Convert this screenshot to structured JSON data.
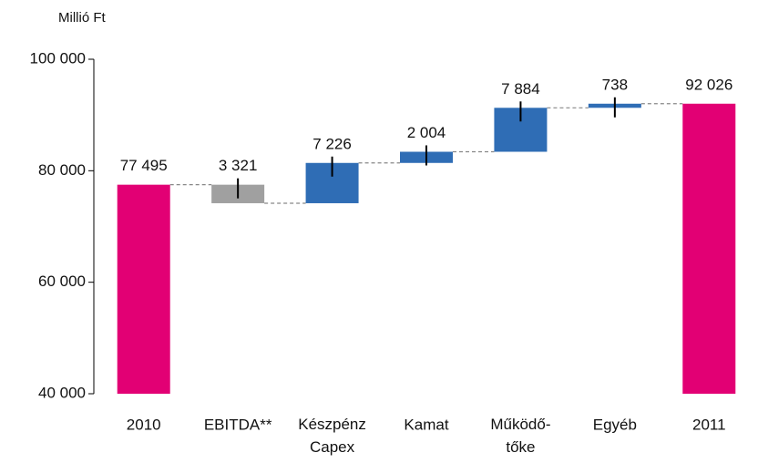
{
  "chart_data": {
    "type": "waterfall",
    "y_label": "Millió Ft",
    "categories": [
      "2010",
      "EBITDA**",
      "Készpénz\nCapex",
      "Kamat",
      "Működő-\ntőke",
      "Egyéb",
      "2011"
    ],
    "measure": [
      "absolute",
      "relative",
      "relative",
      "relative",
      "relative",
      "relative",
      "absolute"
    ],
    "values": [
      77495,
      -3321,
      7226,
      2004,
      7884,
      738,
      92026
    ],
    "value_labels": [
      "77 495",
      "3 321",
      "7 226",
      "2 004",
      "7 884",
      "738",
      "92 026"
    ],
    "colors": [
      "#e20074",
      "#a0a0a0",
      "#2f6db5",
      "#2f6db5",
      "#2f6db5",
      "#2f6db5",
      "#e20074"
    ],
    "ylim": [
      40000,
      100000
    ],
    "yticks": [
      {
        "value": 40000,
        "label": "40 000"
      },
      {
        "value": 60000,
        "label": "60 000"
      },
      {
        "value": 80000,
        "label": "80 000"
      },
      {
        "value": 100000,
        "label": "100 000"
      }
    ],
    "grid": false
  }
}
